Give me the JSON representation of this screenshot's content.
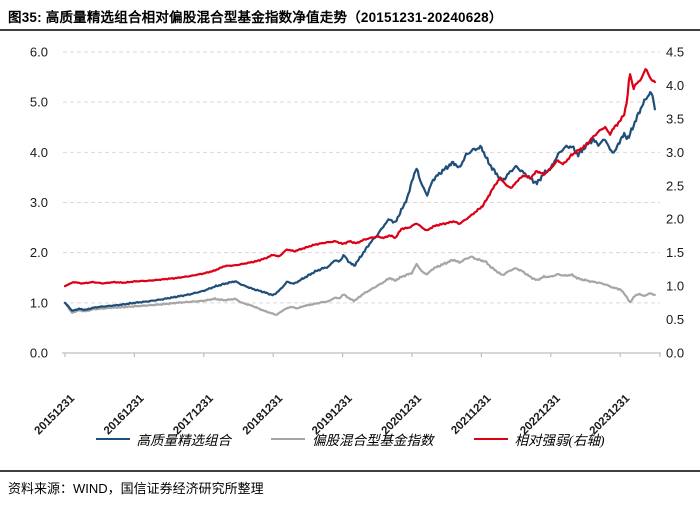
{
  "title": "图35: 高质量精选组合相对偏股混合型基金指数净值走势（20151231-20240628）",
  "source": "资料来源：WIND，国信证券经济研究所整理",
  "colors": {
    "portfolio": "#1F4E79",
    "index": "#A6A6A6",
    "relative": "#DC0017",
    "gridline": "#D9D9D9",
    "axis": "#BFBFBF",
    "rule": "#3f3f3f"
  },
  "legend": {
    "items": [
      {
        "key": "portfolio",
        "label": "高质量精选组合",
        "color": "#1F4E79"
      },
      {
        "key": "index",
        "label": "偏股混合型基金指数",
        "color": "#A6A6A6"
      },
      {
        "key": "relative",
        "label": "相对强弱(右轴)",
        "color": "#DC0017"
      }
    ]
  },
  "chart_data": {
    "type": "line",
    "title": "高质量精选组合相对偏股混合型基金指数净值走势",
    "period": "20151231-20240628",
    "x_tick_labels": [
      "20151231",
      "20161231",
      "20171231",
      "20181231",
      "20191231",
      "20201231",
      "20211231",
      "20221231",
      "20231231"
    ],
    "x_range_years": [
      0,
      8.5
    ],
    "grid": "horizontal-dashed",
    "legend_position": "bottom",
    "left_axis": {
      "min": 0,
      "max": 6,
      "step": 1.0,
      "tick_labels": [
        "0.0",
        "1.0",
        "2.0",
        "3.0",
        "4.0",
        "5.0",
        "6.0"
      ]
    },
    "right_axis": {
      "min": 0,
      "max": 4.5,
      "step": 0.5,
      "tick_labels": [
        "0.0",
        "0.5",
        "1.0",
        "1.5",
        "2.0",
        "2.5",
        "3.0",
        "3.5",
        "4.0",
        "4.5"
      ]
    },
    "series": [
      {
        "name": "高质量精选组合",
        "key": "portfolio",
        "axis": "left",
        "color": "#1F4E79",
        "points": [
          [
            0,
            1.0
          ],
          [
            0.05,
            0.93
          ],
          [
            0.1,
            0.84
          ],
          [
            0.2,
            0.88
          ],
          [
            0.3,
            0.86
          ],
          [
            0.4,
            0.9
          ],
          [
            0.5,
            0.92
          ],
          [
            0.65,
            0.94
          ],
          [
            0.8,
            0.96
          ],
          [
            1.0,
            1.0
          ],
          [
            1.2,
            1.03
          ],
          [
            1.4,
            1.07
          ],
          [
            1.6,
            1.12
          ],
          [
            1.8,
            1.17
          ],
          [
            2.0,
            1.24
          ],
          [
            2.15,
            1.32
          ],
          [
            2.3,
            1.38
          ],
          [
            2.45,
            1.43
          ],
          [
            2.55,
            1.36
          ],
          [
            2.7,
            1.28
          ],
          [
            2.85,
            1.22
          ],
          [
            3.0,
            1.15
          ],
          [
            3.1,
            1.26
          ],
          [
            3.2,
            1.42
          ],
          [
            3.3,
            1.38
          ],
          [
            3.45,
            1.5
          ],
          [
            3.6,
            1.62
          ],
          [
            3.7,
            1.68
          ],
          [
            3.8,
            1.72
          ],
          [
            3.88,
            1.85
          ],
          [
            3.95,
            1.82
          ],
          [
            4.02,
            1.95
          ],
          [
            4.1,
            1.8
          ],
          [
            4.17,
            1.74
          ],
          [
            4.3,
            2.0
          ],
          [
            4.4,
            2.2
          ],
          [
            4.5,
            2.35
          ],
          [
            4.6,
            2.55
          ],
          [
            4.68,
            2.68
          ],
          [
            4.75,
            2.58
          ],
          [
            4.85,
            2.85
          ],
          [
            4.95,
            3.15
          ],
          [
            5.0,
            3.45
          ],
          [
            5.07,
            3.68
          ],
          [
            5.14,
            3.35
          ],
          [
            5.22,
            3.15
          ],
          [
            5.3,
            3.45
          ],
          [
            5.4,
            3.58
          ],
          [
            5.5,
            3.7
          ],
          [
            5.6,
            3.8
          ],
          [
            5.68,
            3.68
          ],
          [
            5.78,
            3.95
          ],
          [
            5.88,
            4.05
          ],
          [
            6.0,
            4.1
          ],
          [
            6.1,
            3.8
          ],
          [
            6.2,
            3.6
          ],
          [
            6.3,
            3.42
          ],
          [
            6.42,
            3.62
          ],
          [
            6.5,
            3.72
          ],
          [
            6.6,
            3.6
          ],
          [
            6.7,
            3.48
          ],
          [
            6.8,
            3.38
          ],
          [
            6.9,
            3.58
          ],
          [
            7.0,
            3.68
          ],
          [
            7.1,
            3.95
          ],
          [
            7.2,
            4.1
          ],
          [
            7.3,
            4.12
          ],
          [
            7.4,
            3.95
          ],
          [
            7.5,
            4.12
          ],
          [
            7.6,
            4.25
          ],
          [
            7.7,
            4.15
          ],
          [
            7.78,
            4.28
          ],
          [
            7.85,
            4.05
          ],
          [
            7.92,
            4.0
          ],
          [
            8.0,
            4.25
          ],
          [
            8.06,
            4.35
          ],
          [
            8.12,
            4.28
          ],
          [
            8.18,
            4.5
          ],
          [
            8.25,
            4.72
          ],
          [
            8.32,
            4.95
          ],
          [
            8.38,
            5.08
          ],
          [
            8.43,
            5.2
          ],
          [
            8.47,
            5.1
          ],
          [
            8.5,
            4.88
          ]
        ]
      },
      {
        "name": "偏股混合型基金指数",
        "key": "index",
        "axis": "left",
        "color": "#A6A6A6",
        "points": [
          [
            0,
            1.0
          ],
          [
            0.05,
            0.9
          ],
          [
            0.1,
            0.8
          ],
          [
            0.2,
            0.85
          ],
          [
            0.3,
            0.83
          ],
          [
            0.4,
            0.87
          ],
          [
            0.5,
            0.88
          ],
          [
            0.65,
            0.9
          ],
          [
            0.8,
            0.91
          ],
          [
            1.0,
            0.93
          ],
          [
            1.2,
            0.95
          ],
          [
            1.4,
            0.97
          ],
          [
            1.6,
            1.0
          ],
          [
            1.8,
            1.02
          ],
          [
            2.0,
            1.04
          ],
          [
            2.15,
            1.08
          ],
          [
            2.3,
            1.05
          ],
          [
            2.45,
            1.08
          ],
          [
            2.55,
            1.0
          ],
          [
            2.7,
            0.94
          ],
          [
            2.85,
            0.85
          ],
          [
            3.0,
            0.78
          ],
          [
            3.05,
            0.76
          ],
          [
            3.15,
            0.86
          ],
          [
            3.25,
            0.92
          ],
          [
            3.35,
            0.89
          ],
          [
            3.45,
            0.94
          ],
          [
            3.6,
            0.98
          ],
          [
            3.7,
            1.01
          ],
          [
            3.8,
            1.03
          ],
          [
            3.88,
            1.1
          ],
          [
            3.95,
            1.09
          ],
          [
            4.02,
            1.17
          ],
          [
            4.1,
            1.08
          ],
          [
            4.17,
            1.04
          ],
          [
            4.3,
            1.18
          ],
          [
            4.4,
            1.26
          ],
          [
            4.5,
            1.34
          ],
          [
            4.6,
            1.42
          ],
          [
            4.68,
            1.5
          ],
          [
            4.75,
            1.44
          ],
          [
            4.85,
            1.52
          ],
          [
            4.95,
            1.57
          ],
          [
            5.0,
            1.6
          ],
          [
            5.07,
            1.78
          ],
          [
            5.14,
            1.62
          ],
          [
            5.22,
            1.57
          ],
          [
            5.3,
            1.68
          ],
          [
            5.4,
            1.74
          ],
          [
            5.5,
            1.8
          ],
          [
            5.6,
            1.86
          ],
          [
            5.68,
            1.8
          ],
          [
            5.78,
            1.88
          ],
          [
            5.85,
            1.92
          ],
          [
            5.95,
            1.86
          ],
          [
            6.05,
            1.83
          ],
          [
            6.15,
            1.7
          ],
          [
            6.3,
            1.55
          ],
          [
            6.42,
            1.65
          ],
          [
            6.5,
            1.69
          ],
          [
            6.6,
            1.62
          ],
          [
            6.7,
            1.52
          ],
          [
            6.8,
            1.45
          ],
          [
            6.9,
            1.52
          ],
          [
            7.0,
            1.52
          ],
          [
            7.1,
            1.57
          ],
          [
            7.2,
            1.54
          ],
          [
            7.3,
            1.56
          ],
          [
            7.4,
            1.48
          ],
          [
            7.5,
            1.45
          ],
          [
            7.6,
            1.42
          ],
          [
            7.7,
            1.4
          ],
          [
            7.8,
            1.36
          ],
          [
            7.9,
            1.3
          ],
          [
            8.0,
            1.27
          ],
          [
            8.08,
            1.15
          ],
          [
            8.14,
            1.0
          ],
          [
            8.2,
            1.13
          ],
          [
            8.28,
            1.18
          ],
          [
            8.34,
            1.13
          ],
          [
            8.42,
            1.19
          ],
          [
            8.5,
            1.16
          ]
        ]
      },
      {
        "name": "相对强弱(右轴)",
        "key": "relative",
        "axis": "right",
        "color": "#DC0017",
        "points": [
          [
            0,
            1.0
          ],
          [
            0.06,
            1.03
          ],
          [
            0.12,
            1.06
          ],
          [
            0.25,
            1.04
          ],
          [
            0.4,
            1.06
          ],
          [
            0.55,
            1.04
          ],
          [
            0.7,
            1.06
          ],
          [
            0.85,
            1.05
          ],
          [
            1.0,
            1.07
          ],
          [
            1.2,
            1.08
          ],
          [
            1.4,
            1.1
          ],
          [
            1.6,
            1.12
          ],
          [
            1.8,
            1.15
          ],
          [
            2.0,
            1.19
          ],
          [
            2.15,
            1.23
          ],
          [
            2.3,
            1.3
          ],
          [
            2.45,
            1.31
          ],
          [
            2.6,
            1.34
          ],
          [
            2.75,
            1.37
          ],
          [
            2.9,
            1.42
          ],
          [
            3.0,
            1.47
          ],
          [
            3.08,
            1.44
          ],
          [
            3.2,
            1.55
          ],
          [
            3.3,
            1.52
          ],
          [
            3.45,
            1.57
          ],
          [
            3.6,
            1.62
          ],
          [
            3.75,
            1.65
          ],
          [
            3.9,
            1.67
          ],
          [
            4.0,
            1.63
          ],
          [
            4.1,
            1.67
          ],
          [
            4.2,
            1.64
          ],
          [
            4.3,
            1.69
          ],
          [
            4.4,
            1.72
          ],
          [
            4.5,
            1.74
          ],
          [
            4.6,
            1.72
          ],
          [
            4.68,
            1.76
          ],
          [
            4.76,
            1.72
          ],
          [
            4.85,
            1.86
          ],
          [
            4.95,
            1.87
          ],
          [
            5.0,
            1.9
          ],
          [
            5.07,
            1.94
          ],
          [
            5.15,
            1.87
          ],
          [
            5.22,
            1.83
          ],
          [
            5.3,
            1.89
          ],
          [
            5.4,
            1.92
          ],
          [
            5.5,
            1.94
          ],
          [
            5.6,
            1.97
          ],
          [
            5.68,
            1.93
          ],
          [
            5.78,
            2.0
          ],
          [
            5.88,
            2.08
          ],
          [
            5.95,
            2.14
          ],
          [
            6.02,
            2.2
          ],
          [
            6.1,
            2.34
          ],
          [
            6.2,
            2.52
          ],
          [
            6.28,
            2.62
          ],
          [
            6.36,
            2.5
          ],
          [
            6.44,
            2.47
          ],
          [
            6.52,
            2.58
          ],
          [
            6.62,
            2.66
          ],
          [
            6.7,
            2.61
          ],
          [
            6.8,
            2.72
          ],
          [
            6.9,
            2.67
          ],
          [
            7.0,
            2.76
          ],
          [
            7.1,
            2.88
          ],
          [
            7.18,
            2.82
          ],
          [
            7.3,
            2.96
          ],
          [
            7.4,
            3.03
          ],
          [
            7.5,
            3.1
          ],
          [
            7.6,
            3.22
          ],
          [
            7.7,
            3.32
          ],
          [
            7.78,
            3.38
          ],
          [
            7.85,
            3.27
          ],
          [
            7.92,
            3.38
          ],
          [
            8.0,
            3.47
          ],
          [
            8.06,
            3.58
          ],
          [
            8.1,
            3.78
          ],
          [
            8.14,
            4.2
          ],
          [
            8.19,
            3.95
          ],
          [
            8.25,
            4.05
          ],
          [
            8.31,
            4.1
          ],
          [
            8.37,
            4.27
          ],
          [
            8.43,
            4.1
          ],
          [
            8.5,
            4.06
          ]
        ]
      }
    ]
  }
}
